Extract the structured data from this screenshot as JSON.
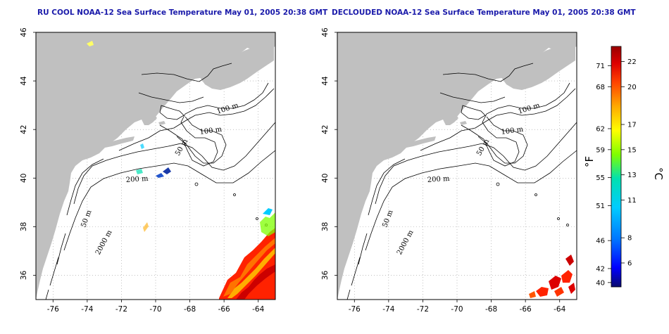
{
  "panels": [
    {
      "title": "RU COOL NOAA-12 Sea Surface Temperature May 01, 2005 20:38 GMT",
      "variant": "raw"
    },
    {
      "title": "DECLOUDED NOAA-12 Sea Surface Temperature May 01, 2005 20:38 GMT",
      "variant": "declouded"
    }
  ],
  "map": {
    "lon_range": [
      -77,
      -63
    ],
    "lat_range": [
      35,
      46
    ],
    "x_ticks": [
      "-76",
      "-74",
      "-72",
      "-70",
      "-68",
      "-66",
      "-64"
    ],
    "y_ticks": [
      "36",
      "38",
      "40",
      "42",
      "44",
      "46"
    ],
    "contour_labels": [
      "100 m",
      "100 m",
      "50 m",
      "200 m",
      "50 m",
      "2000 m"
    ],
    "land_color": "#c0c0c0",
    "grid": "dotted"
  },
  "colorbar": {
    "f_label": "°F",
    "c_label": "°C",
    "f_ticks": [
      "71",
      "68",
      "62",
      "59",
      "55",
      "51",
      "46",
      "42",
      "40"
    ],
    "c_ticks": [
      "22",
      "20",
      "17",
      "15",
      "13",
      "11",
      "8",
      "6"
    ],
    "colors": [
      "#0a0a6e",
      "#0000ff",
      "#0077ff",
      "#00ccff",
      "#00e0b0",
      "#7fff00",
      "#ffff00",
      "#ffaa00",
      "#ff4400",
      "#dd0000",
      "#990000"
    ]
  }
}
